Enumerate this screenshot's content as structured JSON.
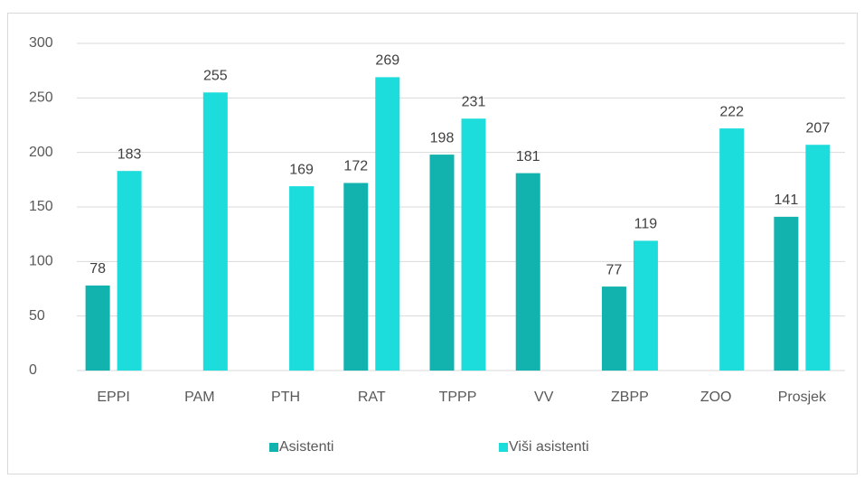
{
  "chart_data": {
    "type": "bar",
    "categories": [
      "EPPI",
      "PAM",
      "PTH",
      "RAT",
      "TPPP",
      "VV",
      "ZBPP",
      "ZOO",
      "Prosjek"
    ],
    "series": [
      {
        "name": "Asistenti",
        "color": "#12b3ae",
        "values": [
          78,
          null,
          null,
          172,
          198,
          181,
          77,
          null,
          141
        ]
      },
      {
        "name": "Viši asistenti",
        "color": "#1cdcdc",
        "values": [
          183,
          255,
          169,
          269,
          231,
          null,
          119,
          222,
          207
        ]
      }
    ],
    "ylim": [
      0,
      300
    ],
    "yticks": [
      0,
      50,
      100,
      150,
      200,
      250,
      300
    ],
    "grid": true,
    "legend": "bottom"
  }
}
